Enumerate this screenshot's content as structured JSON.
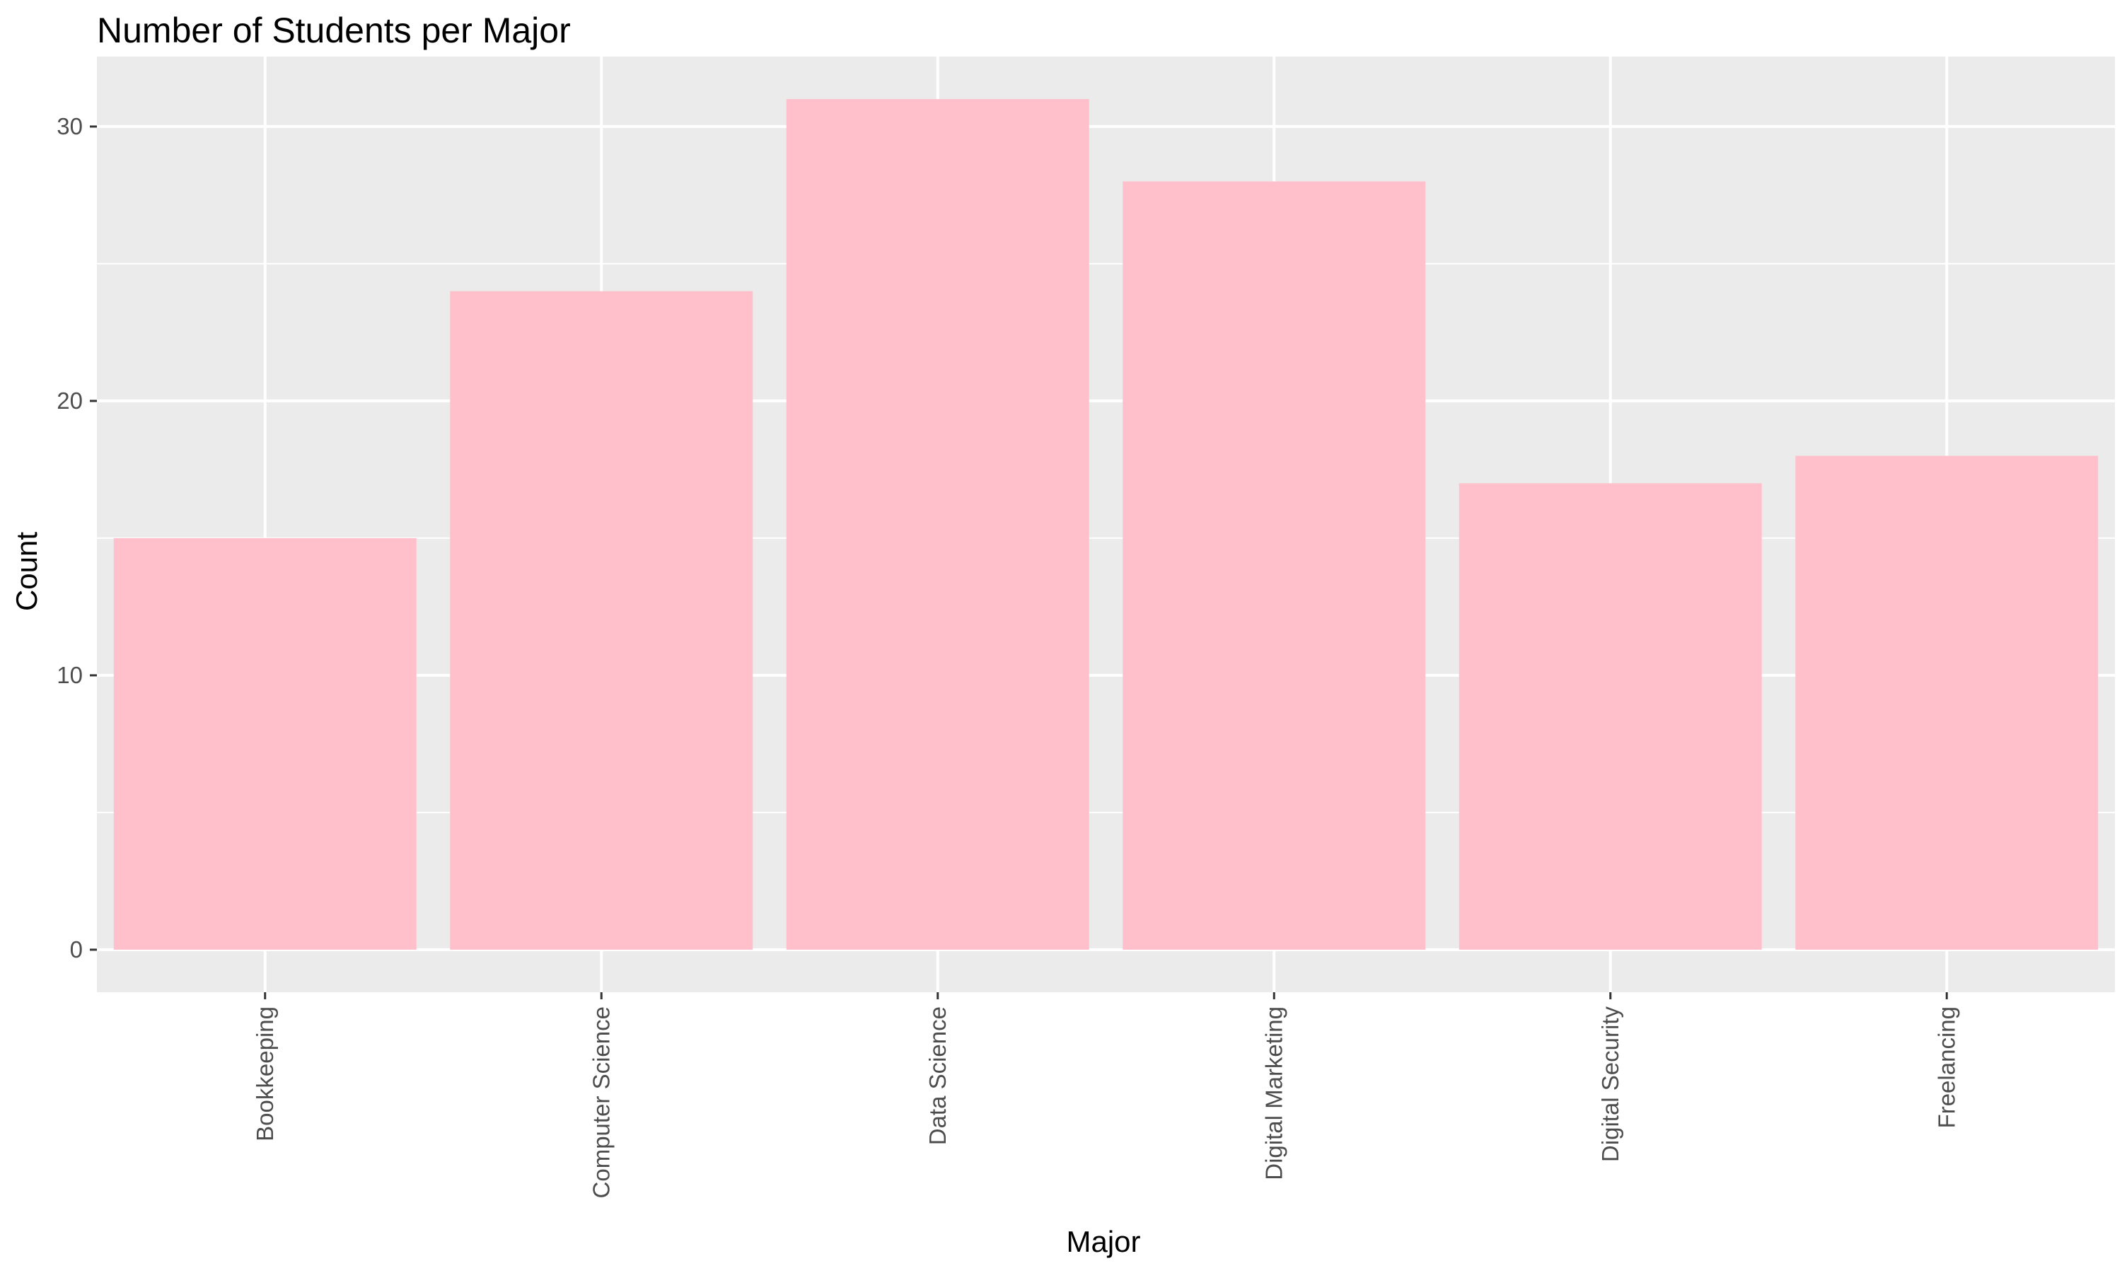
{
  "chart_data": {
    "type": "bar",
    "title": "Number of Students per Major",
    "xlabel": "Major",
    "ylabel": "Count",
    "categories": [
      "Bookkeeping",
      "Computer Science",
      "Data Science",
      "Digital Marketing",
      "Digital Security",
      "Freelancing"
    ],
    "values": [
      15,
      24,
      31,
      28,
      17,
      18
    ],
    "yticks": [
      0,
      10,
      20,
      30
    ],
    "ylim": [
      -1.55,
      32.55
    ],
    "grid": true,
    "legend": "none",
    "x_tick_label_rotation": "vertical",
    "colors": {
      "bar": "#FFC0CB",
      "panel_background": "#EBEBEB",
      "grid": "#FFFFFF",
      "tick_label": "#4D4D4D",
      "tick": "#333333"
    }
  }
}
